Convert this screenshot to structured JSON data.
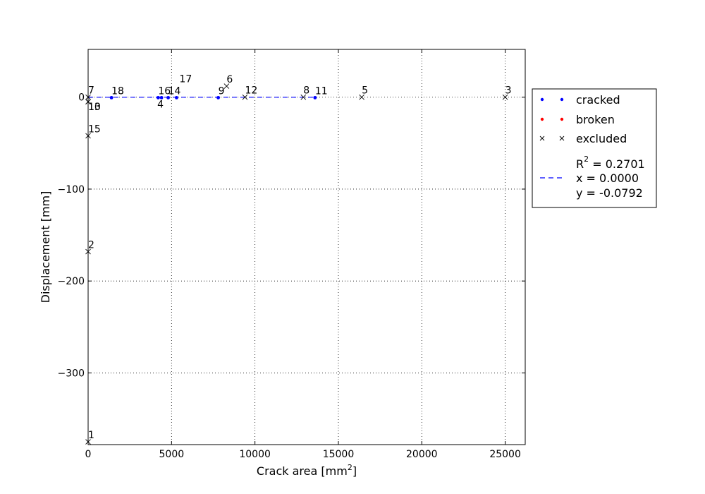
{
  "chart_data": {
    "type": "scatter",
    "xlabel": "Crack area [mm",
    "xlabel_sup": "2",
    "xlabel_end": "]",
    "ylabel": "Displacement [mm]",
    "xlim": [
      0,
      26200
    ],
    "ylim": [
      -378,
      52
    ],
    "xticks": [
      0,
      5000,
      10000,
      15000,
      20000,
      25000
    ],
    "xtick_labels": [
      "0",
      "5000",
      "10000",
      "15000",
      "20000",
      "25000"
    ],
    "yticks": [
      0,
      -100,
      -200,
      -300
    ],
    "ytick_labels": [
      "0",
      "−100",
      "−200",
      "−300"
    ],
    "grid": true,
    "legend_position": "right-outside",
    "colors": {
      "cracked": "#0000ff",
      "broken": "#ff0000",
      "excluded": "#000000",
      "fit": "#0000ff"
    },
    "series": [
      {
        "name": "cracked",
        "marker": "dot",
        "points": [
          {
            "label": "18",
            "x": 1400,
            "y": -0.5
          },
          {
            "label": "16",
            "x": 4200,
            "y": -0.5
          },
          {
            "label": "4",
            "x": 4400,
            "y": -0.5
          },
          {
            "label": "14",
            "x": 4800,
            "y": -0.5
          },
          {
            "label": "17",
            "x": 5300,
            "y": -0.5
          },
          {
            "label": "9",
            "x": 7800,
            "y": -0.5
          },
          {
            "label": "11",
            "x": 13600,
            "y": -0.5
          }
        ]
      },
      {
        "name": "broken",
        "marker": "dot",
        "points": []
      },
      {
        "name": "excluded",
        "marker": "x",
        "points": [
          {
            "label": "7",
            "x": 0,
            "y": 0
          },
          {
            "label": "10",
            "x": 0,
            "y": -5
          },
          {
            "label": "13",
            "x": 0,
            "y": -5
          },
          {
            "label": "15",
            "x": 0,
            "y": -42
          },
          {
            "label": "2",
            "x": 0,
            "y": -168
          },
          {
            "label": "1",
            "x": 0,
            "y": -375
          },
          {
            "label": "6",
            "x": 8300,
            "y": 12
          },
          {
            "label": "12",
            "x": 9400,
            "y": 0
          },
          {
            "label": "8",
            "x": 12900,
            "y": 0
          },
          {
            "label": "5",
            "x": 16400,
            "y": 0
          },
          {
            "label": "3",
            "x": 25000,
            "y": 0
          }
        ]
      }
    ],
    "fit_line": {
      "x": [
        0,
        13600
      ],
      "y": [
        -0.08,
        -0.08
      ]
    },
    "legend": {
      "entries": [
        "cracked",
        "broken",
        "excluded"
      ],
      "fit_text": [
        "R",
        "2",
        " = 0.2701",
        "x = 0.0000",
        "y = -0.0792"
      ]
    }
  }
}
